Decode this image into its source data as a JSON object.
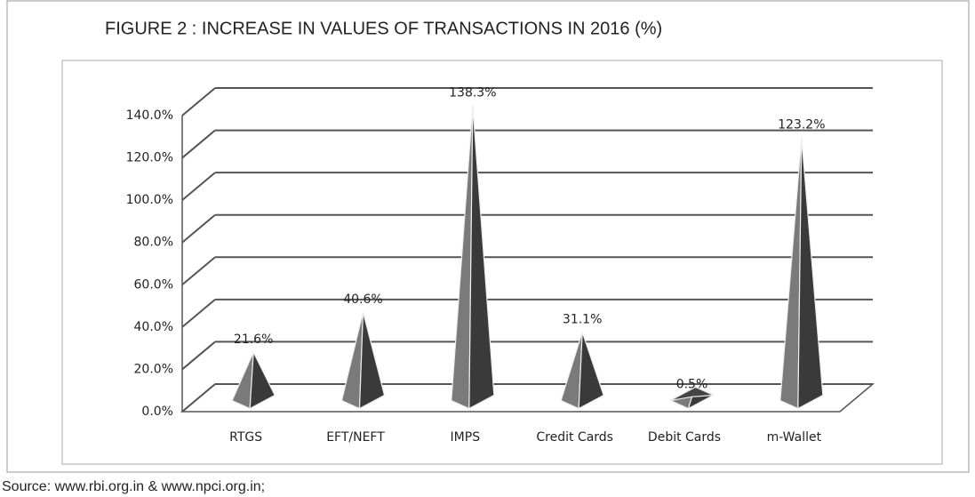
{
  "chart_data": {
    "type": "pyramid3d",
    "title": "FIGURE 2 : INCREASE IN VALUES OF TRANSACTIONS IN 2016 (%)",
    "categories": [
      "RTGS",
      "EFT/NEFT",
      "IMPS",
      "Credit Cards",
      "Debit Cards",
      "m-Wallet"
    ],
    "values": [
      21.6,
      40.6,
      138.3,
      31.1,
      0.5,
      123.2
    ],
    "value_labels": [
      "21.6%",
      "40.6%",
      "138.3%",
      "31.1%",
      "0.5%",
      "123.2%"
    ],
    "color": "#7a7a7a",
    "ylim": [
      0,
      140
    ],
    "yticks": [
      {
        "value": 0,
        "label": "0.0%"
      },
      {
        "value": 20,
        "label": "20.0%"
      },
      {
        "value": 40,
        "label": "40.0%"
      },
      {
        "value": 60,
        "label": "60.0%"
      },
      {
        "value": 80,
        "label": "80.0%"
      },
      {
        "value": 100,
        "label": "100.0%"
      },
      {
        "value": 120,
        "label": "120.0%"
      },
      {
        "value": 140,
        "label": "140.0%"
      }
    ],
    "grid": true,
    "source": "Source: www.rbi.org.in & www.npci.org.in;"
  }
}
